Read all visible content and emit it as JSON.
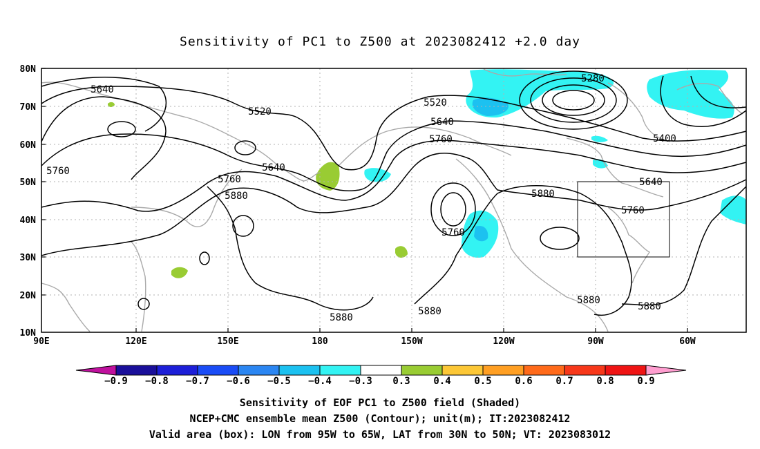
{
  "title": "Sensitivity of PC1 to Z500 at 2023082412 +2.0 day",
  "map": {
    "lat_labels": [
      "80N",
      "70N",
      "60N",
      "50N",
      "40N",
      "30N",
      "20N",
      "10N"
    ],
    "lon_labels": [
      "90E",
      "120E",
      "150E",
      "180",
      "150W",
      "120W",
      "90W",
      "60W"
    ],
    "contour_labels": [
      "5640",
      "5520",
      "5760",
      "5640",
      "5760",
      "5880",
      "5520",
      "5640",
      "5760",
      "5760",
      "5880",
      "5280",
      "5400",
      "5640",
      "5760",
      "5880",
      "5880",
      "5880",
      "5880"
    ],
    "valid_box": {
      "lon_from": "95W",
      "lon_to": "65W",
      "lat_from": "30N",
      "lat_to": "50N"
    }
  },
  "colorbar": {
    "labels": [
      "−0.9",
      "−0.8",
      "−0.7",
      "−0.6",
      "−0.5",
      "−0.4",
      "−0.3",
      "0.3",
      "0.4",
      "0.5",
      "0.6",
      "0.7",
      "0.8",
      "0.9"
    ],
    "colors": [
      "#c0119e",
      "#1a0f9a",
      "#1d1fd8",
      "#1a4cf6",
      "#2b86f2",
      "#1cc1f0",
      "#33f3f3",
      "#ffffff",
      "#99cc33",
      "#fcc736",
      "#ff9f23",
      "#ff6a1a",
      "#f7381a",
      "#ef1414",
      "#ff9ed0"
    ]
  },
  "footer": {
    "line1": "Sensitivity of EOF PC1 to Z500 field (Shaded)",
    "line2": "NCEP+CMC ensemble mean Z500 (Contour); unit(m); IT:2023082412",
    "line3": "Valid area (box): LON from 95W to 65W, LAT from 30N to 50N; VT: 2023083012"
  }
}
